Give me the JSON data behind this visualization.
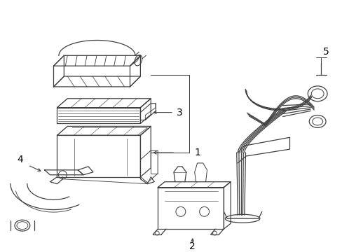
{
  "background_color": "#ffffff",
  "line_color": "#404040",
  "line_width": 0.9,
  "label_color": "#000000",
  "label_fontsize": 9,
  "fig_width": 4.89,
  "fig_height": 3.6,
  "dpi": 100
}
